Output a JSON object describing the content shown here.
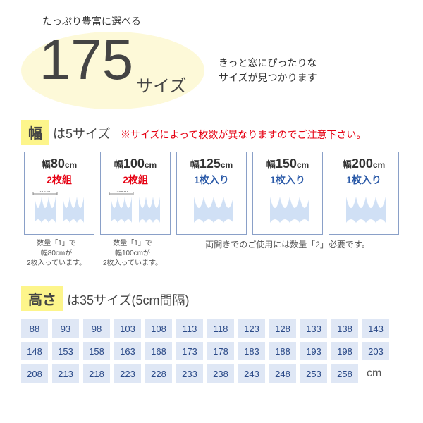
{
  "top_text": "たっぷり豊富に選べる",
  "size_number": "175",
  "size_label": "サイズ",
  "hero_sub_line1": "きっと窓にぴったりな",
  "hero_sub_line2": "サイズが見つかります",
  "width_section": {
    "label": "幅",
    "text": " は5サイズ",
    "warning": "※サイズによって枚数が異なりますのでご注意下さい。",
    "cards": [
      {
        "prefix": "幅",
        "num": "80",
        "unit": "cm",
        "pack": "2枚組",
        "pack_class": "pack-red",
        "svg_width": "80"
      },
      {
        "prefix": "幅",
        "num": "100",
        "unit": "cm",
        "pack": "2枚組",
        "pack_class": "pack-red",
        "svg_width": "100"
      },
      {
        "prefix": "幅",
        "num": "125",
        "unit": "cm",
        "pack": "1枚入り",
        "pack_class": "pack-blue",
        "svg_width": ""
      },
      {
        "prefix": "幅",
        "num": "150",
        "unit": "cm",
        "pack": "1枚入り",
        "pack_class": "pack-blue",
        "svg_width": ""
      },
      {
        "prefix": "幅",
        "num": "200",
        "unit": "cm",
        "pack": "1枚入り",
        "pack_class": "pack-blue",
        "svg_width": ""
      }
    ],
    "notes": [
      "数量「1」で\n幅80cmが\n2枚入っています。",
      "数量「1」で\n幅100cmが\n2枚入っています。"
    ],
    "note_wide": "両開きでのご使用には数量「2」必要です。"
  },
  "height_section": {
    "label": "高さ",
    "text": " は35サイズ(5cm間隔)",
    "values": [
      "88",
      "93",
      "98",
      "103",
      "108",
      "113",
      "118",
      "123",
      "128",
      "133",
      "138",
      "143",
      "148",
      "153",
      "158",
      "163",
      "168",
      "173",
      "178",
      "183",
      "188",
      "193",
      "198",
      "203",
      "208",
      "213",
      "218",
      "223",
      "228",
      "233",
      "238",
      "243",
      "248",
      "253",
      "258"
    ],
    "unit": "cm"
  },
  "colors": {
    "bubble_bg": "#fdf9d8",
    "label_bg": "#fdf58b",
    "warning": "#e60012",
    "card_border": "#8aa0c8",
    "height_cell_bg": "#dfe7f5",
    "height_cell_fg": "#2b4a88"
  }
}
